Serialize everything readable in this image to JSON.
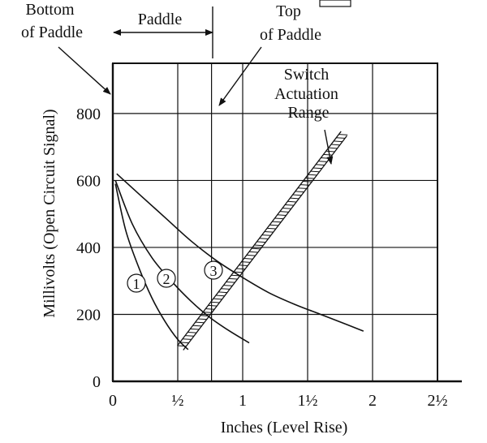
{
  "chart_data": {
    "type": "line",
    "title": "",
    "xlabel": "Inches (Level Rise)",
    "ylabel": "Millivolts (Open Circuit Signal)",
    "xlim": [
      0,
      2.5
    ],
    "ylim": [
      0,
      950
    ],
    "x_ticks": [
      0,
      0.5,
      1,
      1.5,
      2,
      2.5
    ],
    "x_tick_labels": [
      "0",
      "½",
      "1",
      "1½",
      "2",
      "2½"
    ],
    "y_ticks": [
      0,
      200,
      400,
      600,
      800
    ],
    "y_tick_labels": [
      "0",
      "200",
      "400",
      "600",
      "800"
    ],
    "vertical_gridlines": [
      0,
      0.5,
      0.76,
      1,
      1.5,
      2
    ],
    "grid": true,
    "series": [
      {
        "name": "1",
        "x": [
          0.02,
          0.1,
          0.2,
          0.3,
          0.4,
          0.5,
          0.58
        ],
        "y": [
          590,
          450,
          340,
          250,
          180,
          125,
          95
        ]
      },
      {
        "name": "2",
        "x": [
          0.02,
          0.15,
          0.3,
          0.45,
          0.6,
          0.75,
          0.9,
          1.05
        ],
        "y": [
          600,
          470,
          370,
          300,
          240,
          190,
          150,
          115
        ]
      },
      {
        "name": "3",
        "x": [
          0.03,
          0.2,
          0.4,
          0.6,
          0.8,
          1.0,
          1.2,
          1.4,
          1.6,
          1.8,
          1.93
        ],
        "y": [
          620,
          560,
          490,
          420,
          360,
          310,
          265,
          230,
          200,
          170,
          150
        ]
      }
    ],
    "switch_band": {
      "x": [
        0.52,
        1.78
      ],
      "y": [
        100,
        740
      ]
    },
    "annotations": {
      "bottom": "Bottom\nof Paddle",
      "paddle": "Paddle",
      "top": "Top\nof Paddle",
      "switch": "Switch\nActuation\nRange",
      "label1": "1",
      "label2": "2",
      "label3": "3"
    }
  }
}
